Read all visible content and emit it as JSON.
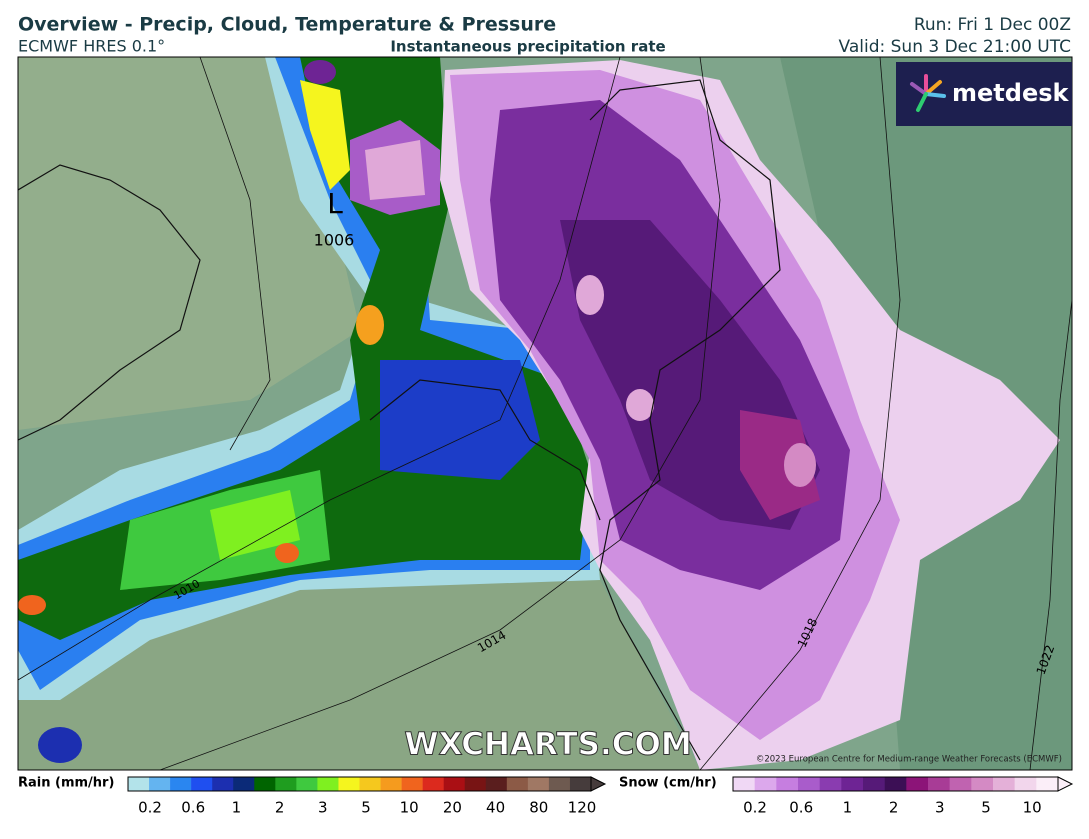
{
  "header": {
    "title": "Overview - Precip, Cloud, Temperature & Pressure",
    "model": "ECMWF HRES 0.1°",
    "field": "Instantaneous precipitation rate",
    "run": "Run: Fri 1 Dec 00Z",
    "valid": "Valid: Sun 3 Dec 21:00 UTC"
  },
  "map": {
    "logo": "metdesk",
    "watermark": "WXCHARTS.COM",
    "copyright": "©2023 European Centre for Medium-range Weather Forecasts (ECMWF)",
    "low_symbol": "L",
    "low_pressure": "1006",
    "isobar_labels": [
      "1010",
      "1014",
      "1018",
      "1022"
    ]
  },
  "legend": {
    "rain": {
      "label": "Rain (mm/hr)",
      "ticks": [
        0.2,
        0.6,
        1,
        2,
        3,
        5,
        10,
        20,
        40,
        80,
        120
      ],
      "colors": [
        "#b3e3ea",
        "#64b4f0",
        "#2a86f0",
        "#1f4ff0",
        "#1c2fb0",
        "#0b2a78",
        "#006400",
        "#1f9d1f",
        "#3fc93f",
        "#7ff020",
        "#f5f51e",
        "#f5c81e",
        "#f59b1e",
        "#f0641e",
        "#dc2a1e",
        "#aa0f14",
        "#781414",
        "#5a1e1e",
        "#8c5a46",
        "#a07864",
        "#6e5a50",
        "#463c3c"
      ]
    },
    "snow": {
      "label": "Snow (cm/hr)",
      "ticks": [
        0.2,
        0.6,
        1,
        2,
        3,
        5,
        10
      ],
      "colors": [
        "#f0d8f5",
        "#dca8ec",
        "#c67ee0",
        "#a95ccb",
        "#8a3cb0",
        "#6e2494",
        "#561a78",
        "#3c0f55",
        "#8c1478",
        "#a83c96",
        "#c063b0",
        "#d48ac4",
        "#e4b0d8",
        "#f2d6ec",
        "#fbeef8"
      ]
    }
  }
}
